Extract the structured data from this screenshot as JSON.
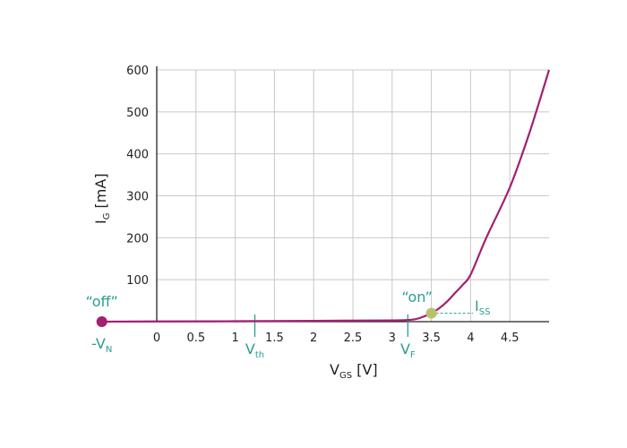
{
  "colors": {
    "curve": "#a3206f",
    "annotation": "#2a9d8f",
    "on_point": "#b8c26a",
    "grid": "#c8c8c8",
    "axis": "#222222"
  },
  "chart_data": {
    "type": "line",
    "grid": true,
    "xlim": [
      -0.7,
      5.0
    ],
    "ylim": [
      0,
      600
    ],
    "xticks": [
      0,
      0.5,
      1,
      1.5,
      2,
      2.5,
      3,
      3.5,
      4,
      4.5
    ],
    "xtick_labels": [
      "0",
      "0.5",
      "1",
      "1.5",
      "2",
      "2.5",
      "3",
      "3.5",
      "4",
      "4.5"
    ],
    "yticks": [
      100,
      200,
      300,
      400,
      500,
      600
    ],
    "ytick_labels": [
      "100",
      "200",
      "300",
      "400",
      "500",
      "600"
    ],
    "xlabel": {
      "main": "V",
      "sub": "GS",
      "unit": " [V]"
    },
    "ylabel": {
      "main": "I",
      "sub": "G",
      "unit": " [mA]"
    },
    "series": [
      {
        "x": [
          -0.7,
          0,
          1,
          2,
          3,
          3.2,
          3.3,
          3.4,
          3.5,
          3.6,
          3.7,
          3.8,
          3.9,
          4.0,
          4.2,
          4.5,
          4.75,
          5.0
        ],
        "y": [
          0,
          0.5,
          1,
          2,
          3,
          4,
          6,
          12,
          20,
          32,
          48,
          68,
          88,
          112,
          200,
          320,
          450,
          600
        ]
      }
    ],
    "annotations": {
      "off_point": {
        "x": -0.7,
        "y": 0,
        "label": "“off”"
      },
      "on_point": {
        "x": 3.5,
        "y": 20,
        "label": "“on”"
      },
      "vn": {
        "x": -0.7,
        "main": "-V",
        "sub": "N"
      },
      "vth": {
        "x": 1.25,
        "main": "V",
        "sub": "th"
      },
      "vf": {
        "x": 3.2,
        "main": "V",
        "sub": "F"
      },
      "iss": {
        "y": 20,
        "main": "I",
        "sub": "SS"
      }
    }
  }
}
